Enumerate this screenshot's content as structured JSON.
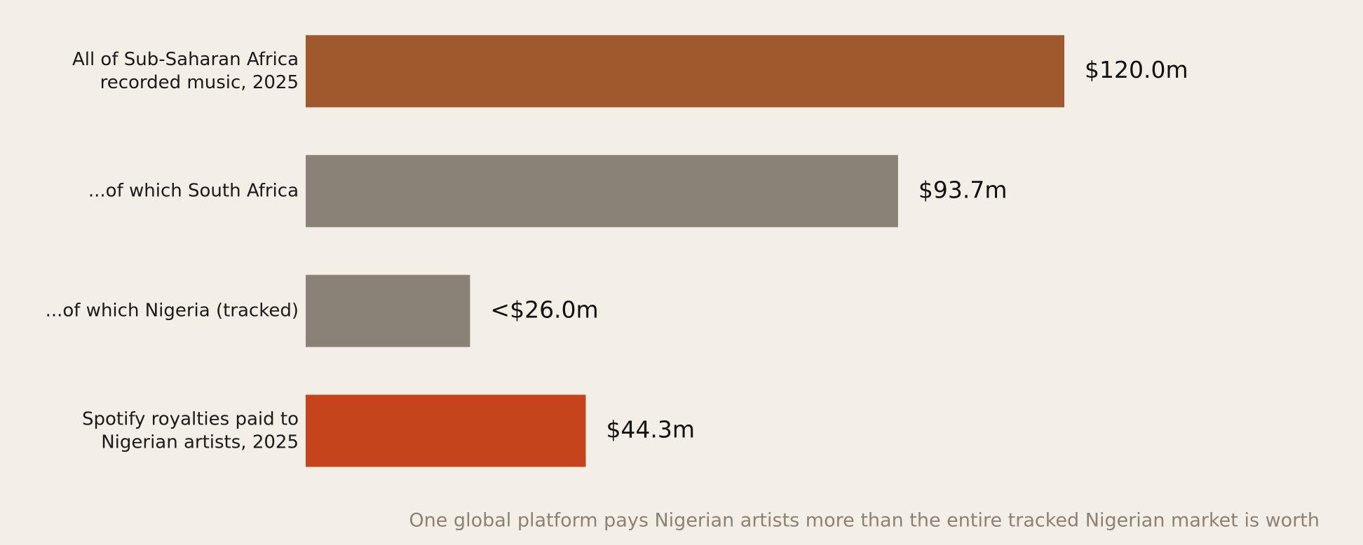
{
  "chart_data": {
    "type": "bar",
    "orientation": "horizontal",
    "categories": [
      "All of Sub-Saharan Africa\nrecorded music, 2025",
      "...of which South Africa",
      "...of which Nigeria (tracked)",
      "Spotify royalties paid to\nNigerian artists, 2025"
    ],
    "values": [
      120.0,
      93.7,
      26.0,
      44.3
    ],
    "value_labels": [
      "$120.0m",
      "$93.7m",
      "<$26.0m",
      "$44.3m"
    ],
    "colors": [
      "#a0592d",
      "#8a8276",
      "#8a8276",
      "#c6441b"
    ],
    "annotation": "One global platform pays Nigerian artists more than the entire tracked Nigerian market is worth"
  }
}
